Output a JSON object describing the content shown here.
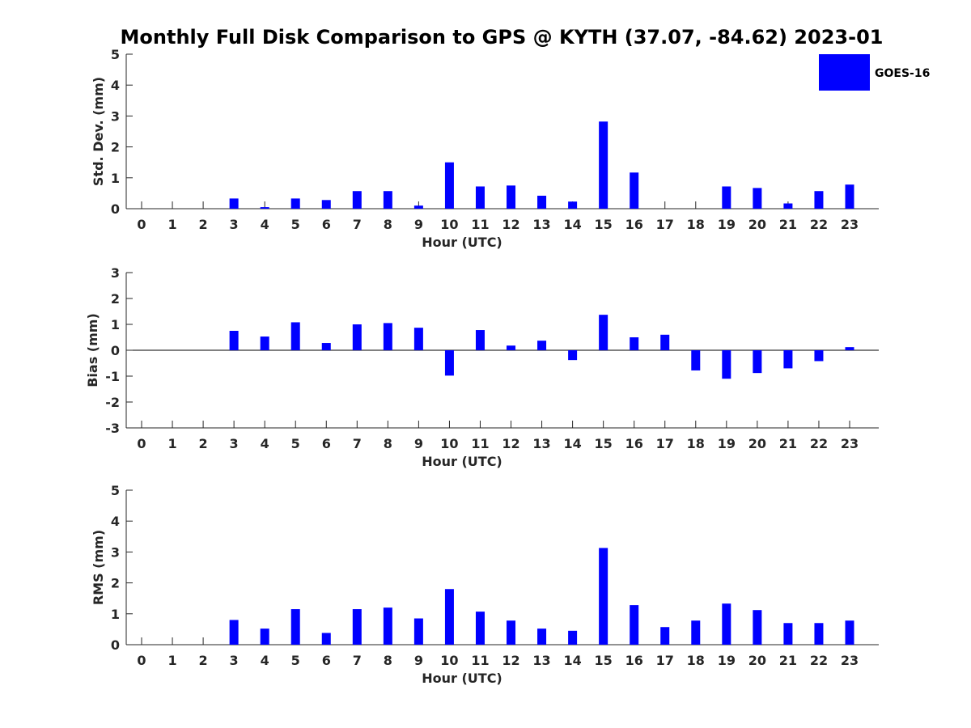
{
  "figure": {
    "title": "Monthly Full Disk Comparison to GPS @ KYTH (37.07, -84.62) 2023-01"
  },
  "legend": {
    "label": "GOES-16",
    "color": "#0000ff"
  },
  "chart_data": [
    {
      "type": "bar",
      "title": "Monthly Full Disk Comparison to GPS @ KYTH (37.07, -84.62) 2023-01",
      "xlabel": "Hour (UTC)",
      "ylabel": "Std. Dev. (mm)",
      "ylim": [
        0,
        5
      ],
      "yticks": [
        0,
        1,
        2,
        3,
        4,
        5
      ],
      "categories": [
        "0",
        "1",
        "2",
        "3",
        "4",
        "5",
        "6",
        "7",
        "8",
        "9",
        "10",
        "11",
        "12",
        "13",
        "14",
        "15",
        "16",
        "17",
        "18",
        "19",
        "20",
        "21",
        "22",
        "23"
      ],
      "series": [
        {
          "name": "GOES-16",
          "values": [
            0,
            0,
            0,
            0.33,
            0.05,
            0.33,
            0.28,
            0.57,
            0.57,
            0.1,
            1.5,
            0.72,
            0.75,
            0.42,
            0.23,
            2.82,
            1.17,
            0,
            0,
            0.72,
            0.67,
            0.17,
            0.57,
            0.78
          ]
        }
      ],
      "grid": false,
      "legend_position": "top-right"
    },
    {
      "type": "bar",
      "xlabel": "Hour (UTC)",
      "ylabel": "Bias (mm)",
      "ylim": [
        -3,
        3
      ],
      "yticks": [
        -3,
        -2,
        -1,
        0,
        1,
        2,
        3
      ],
      "categories": [
        "0",
        "1",
        "2",
        "3",
        "4",
        "5",
        "6",
        "7",
        "8",
        "9",
        "10",
        "11",
        "12",
        "13",
        "14",
        "15",
        "16",
        "17",
        "18",
        "19",
        "20",
        "21",
        "22",
        "23"
      ],
      "series": [
        {
          "name": "GOES-16",
          "values": [
            0,
            0,
            0,
            0.75,
            0.53,
            1.08,
            0.28,
            1.0,
            1.05,
            0.87,
            -0.98,
            0.78,
            0.18,
            0.37,
            -0.38,
            1.37,
            0.5,
            0.6,
            -0.78,
            -1.1,
            -0.88,
            -0.7,
            -0.42,
            0.12
          ]
        }
      ],
      "grid": false
    },
    {
      "type": "bar",
      "xlabel": "Hour (UTC)",
      "ylabel": "RMS (mm)",
      "ylim": [
        0,
        5
      ],
      "yticks": [
        0,
        1,
        2,
        3,
        4,
        5
      ],
      "categories": [
        "0",
        "1",
        "2",
        "3",
        "4",
        "5",
        "6",
        "7",
        "8",
        "9",
        "10",
        "11",
        "12",
        "13",
        "14",
        "15",
        "16",
        "17",
        "18",
        "19",
        "20",
        "21",
        "22",
        "23"
      ],
      "series": [
        {
          "name": "GOES-16",
          "values": [
            0,
            0,
            0,
            0.8,
            0.52,
            1.15,
            0.38,
            1.15,
            1.2,
            0.85,
            1.8,
            1.07,
            0.78,
            0.52,
            0.45,
            3.13,
            1.28,
            0.57,
            0.78,
            1.33,
            1.12,
            0.7,
            0.7,
            0.78
          ]
        }
      ],
      "grid": false
    }
  ]
}
